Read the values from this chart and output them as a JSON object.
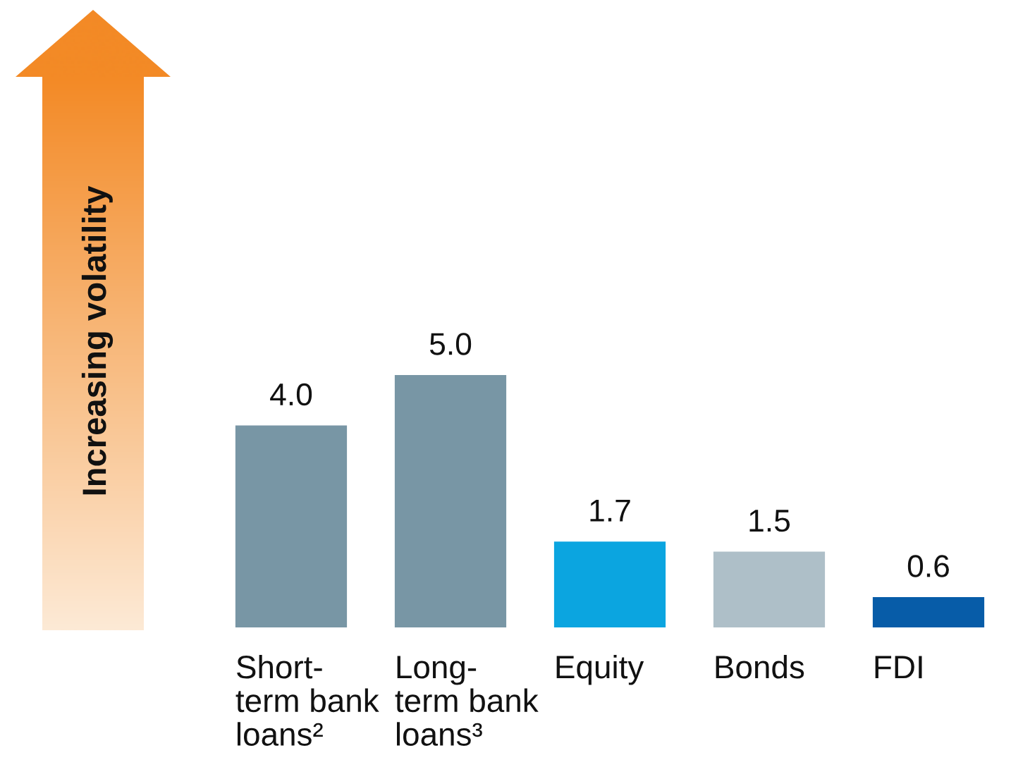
{
  "chart_data": {
    "type": "bar",
    "categories": [
      "Short-\nterm bank\nloans²",
      "Long-\nterm bank\nloans³",
      "Equity",
      "Bonds",
      "FDI"
    ],
    "values": [
      4.0,
      5.0,
      1.7,
      1.5,
      0.6
    ],
    "colors": [
      "#7896a5",
      "#7896a5",
      "#0ba5e0",
      "#aebfc8",
      "#075ca8"
    ],
    "value_labels": [
      "4.0",
      "5.0",
      "1.7",
      "1.5",
      "0.6"
    ],
    "annotations": [
      "Increasing volatility"
    ],
    "tick_labels": "x"
  }
}
